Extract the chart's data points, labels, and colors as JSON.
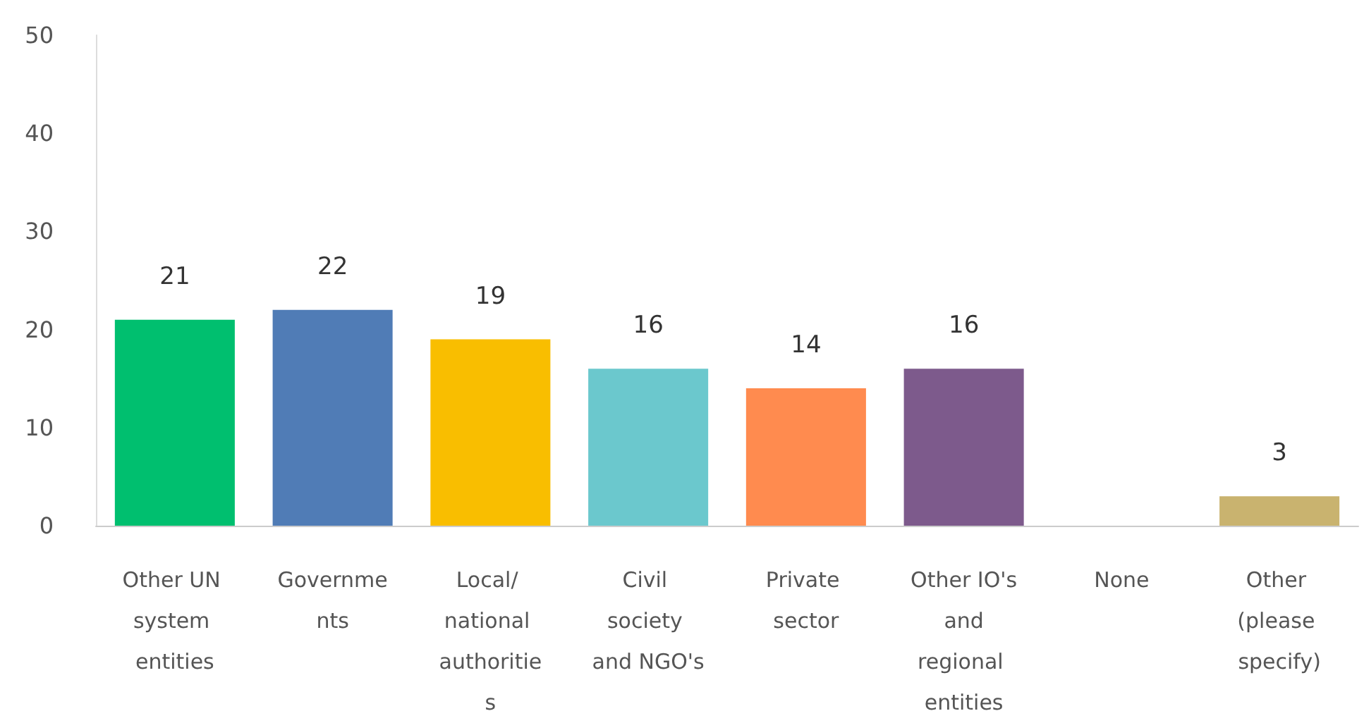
{
  "chart_data": {
    "type": "bar",
    "categories": [
      "Other UN system entities",
      "Governments",
      "Local/ national authorities",
      "Civil society and NGO's",
      "Private sector",
      "Other IO's and regional entities",
      "None",
      "Other (please specify)"
    ],
    "values": [
      21,
      22,
      19,
      16,
      14,
      16,
      0,
      3
    ],
    "colors": [
      "#00bf6f",
      "#507cb6",
      "#f9be00",
      "#6bc8cd",
      "#ff8b4f",
      "#7d5a8c",
      "#a0a0a0",
      "#c9b36f"
    ],
    "value_labels": [
      "21",
      "22",
      "19",
      "16",
      "14",
      "16",
      null,
      "3"
    ],
    "ylim": [
      0,
      50
    ],
    "yticks": [
      0,
      10,
      20,
      30,
      40,
      50
    ],
    "grid": false
  }
}
